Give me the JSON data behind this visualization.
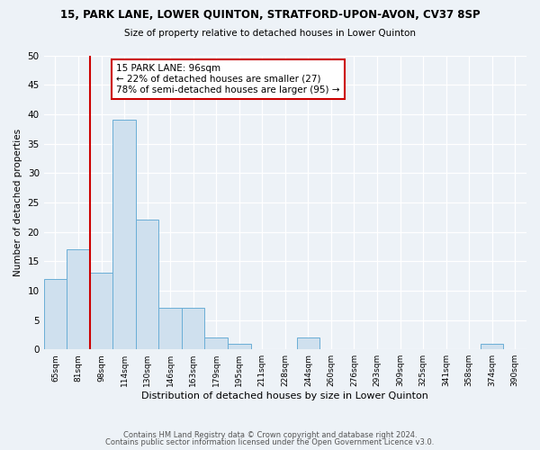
{
  "title1": "15, PARK LANE, LOWER QUINTON, STRATFORD-UPON-AVON, CV37 8SP",
  "title2": "Size of property relative to detached houses in Lower Quinton",
  "xlabel": "Distribution of detached houses by size in Lower Quinton",
  "ylabel": "Number of detached properties",
  "categories": [
    "65sqm",
    "81sqm",
    "98sqm",
    "114sqm",
    "130sqm",
    "146sqm",
    "163sqm",
    "179sqm",
    "195sqm",
    "211sqm",
    "228sqm",
    "244sqm",
    "260sqm",
    "276sqm",
    "293sqm",
    "309sqm",
    "325sqm",
    "341sqm",
    "358sqm",
    "374sqm",
    "390sqm"
  ],
  "values": [
    12,
    17,
    13,
    39,
    22,
    7,
    7,
    2,
    1,
    0,
    0,
    2,
    0,
    0,
    0,
    0,
    0,
    0,
    0,
    1,
    0
  ],
  "bar_color": "#cfe0ee",
  "bar_edge_color": "#6aaed6",
  "vline_x": 1.5,
  "vline_color": "#cc0000",
  "annotation_text": "15 PARK LANE: 96sqm\n← 22% of detached houses are smaller (27)\n78% of semi-detached houses are larger (95) →",
  "annotation_box_color": "#ffffff",
  "annotation_box_edge": "#cc0000",
  "ylim": [
    0,
    50
  ],
  "yticks": [
    0,
    5,
    10,
    15,
    20,
    25,
    30,
    35,
    40,
    45,
    50
  ],
  "footer1": "Contains HM Land Registry data © Crown copyright and database right 2024.",
  "footer2": "Contains public sector information licensed under the Open Government Licence v3.0.",
  "bg_color": "#edf2f7",
  "plot_bg_color": "#edf2f7"
}
